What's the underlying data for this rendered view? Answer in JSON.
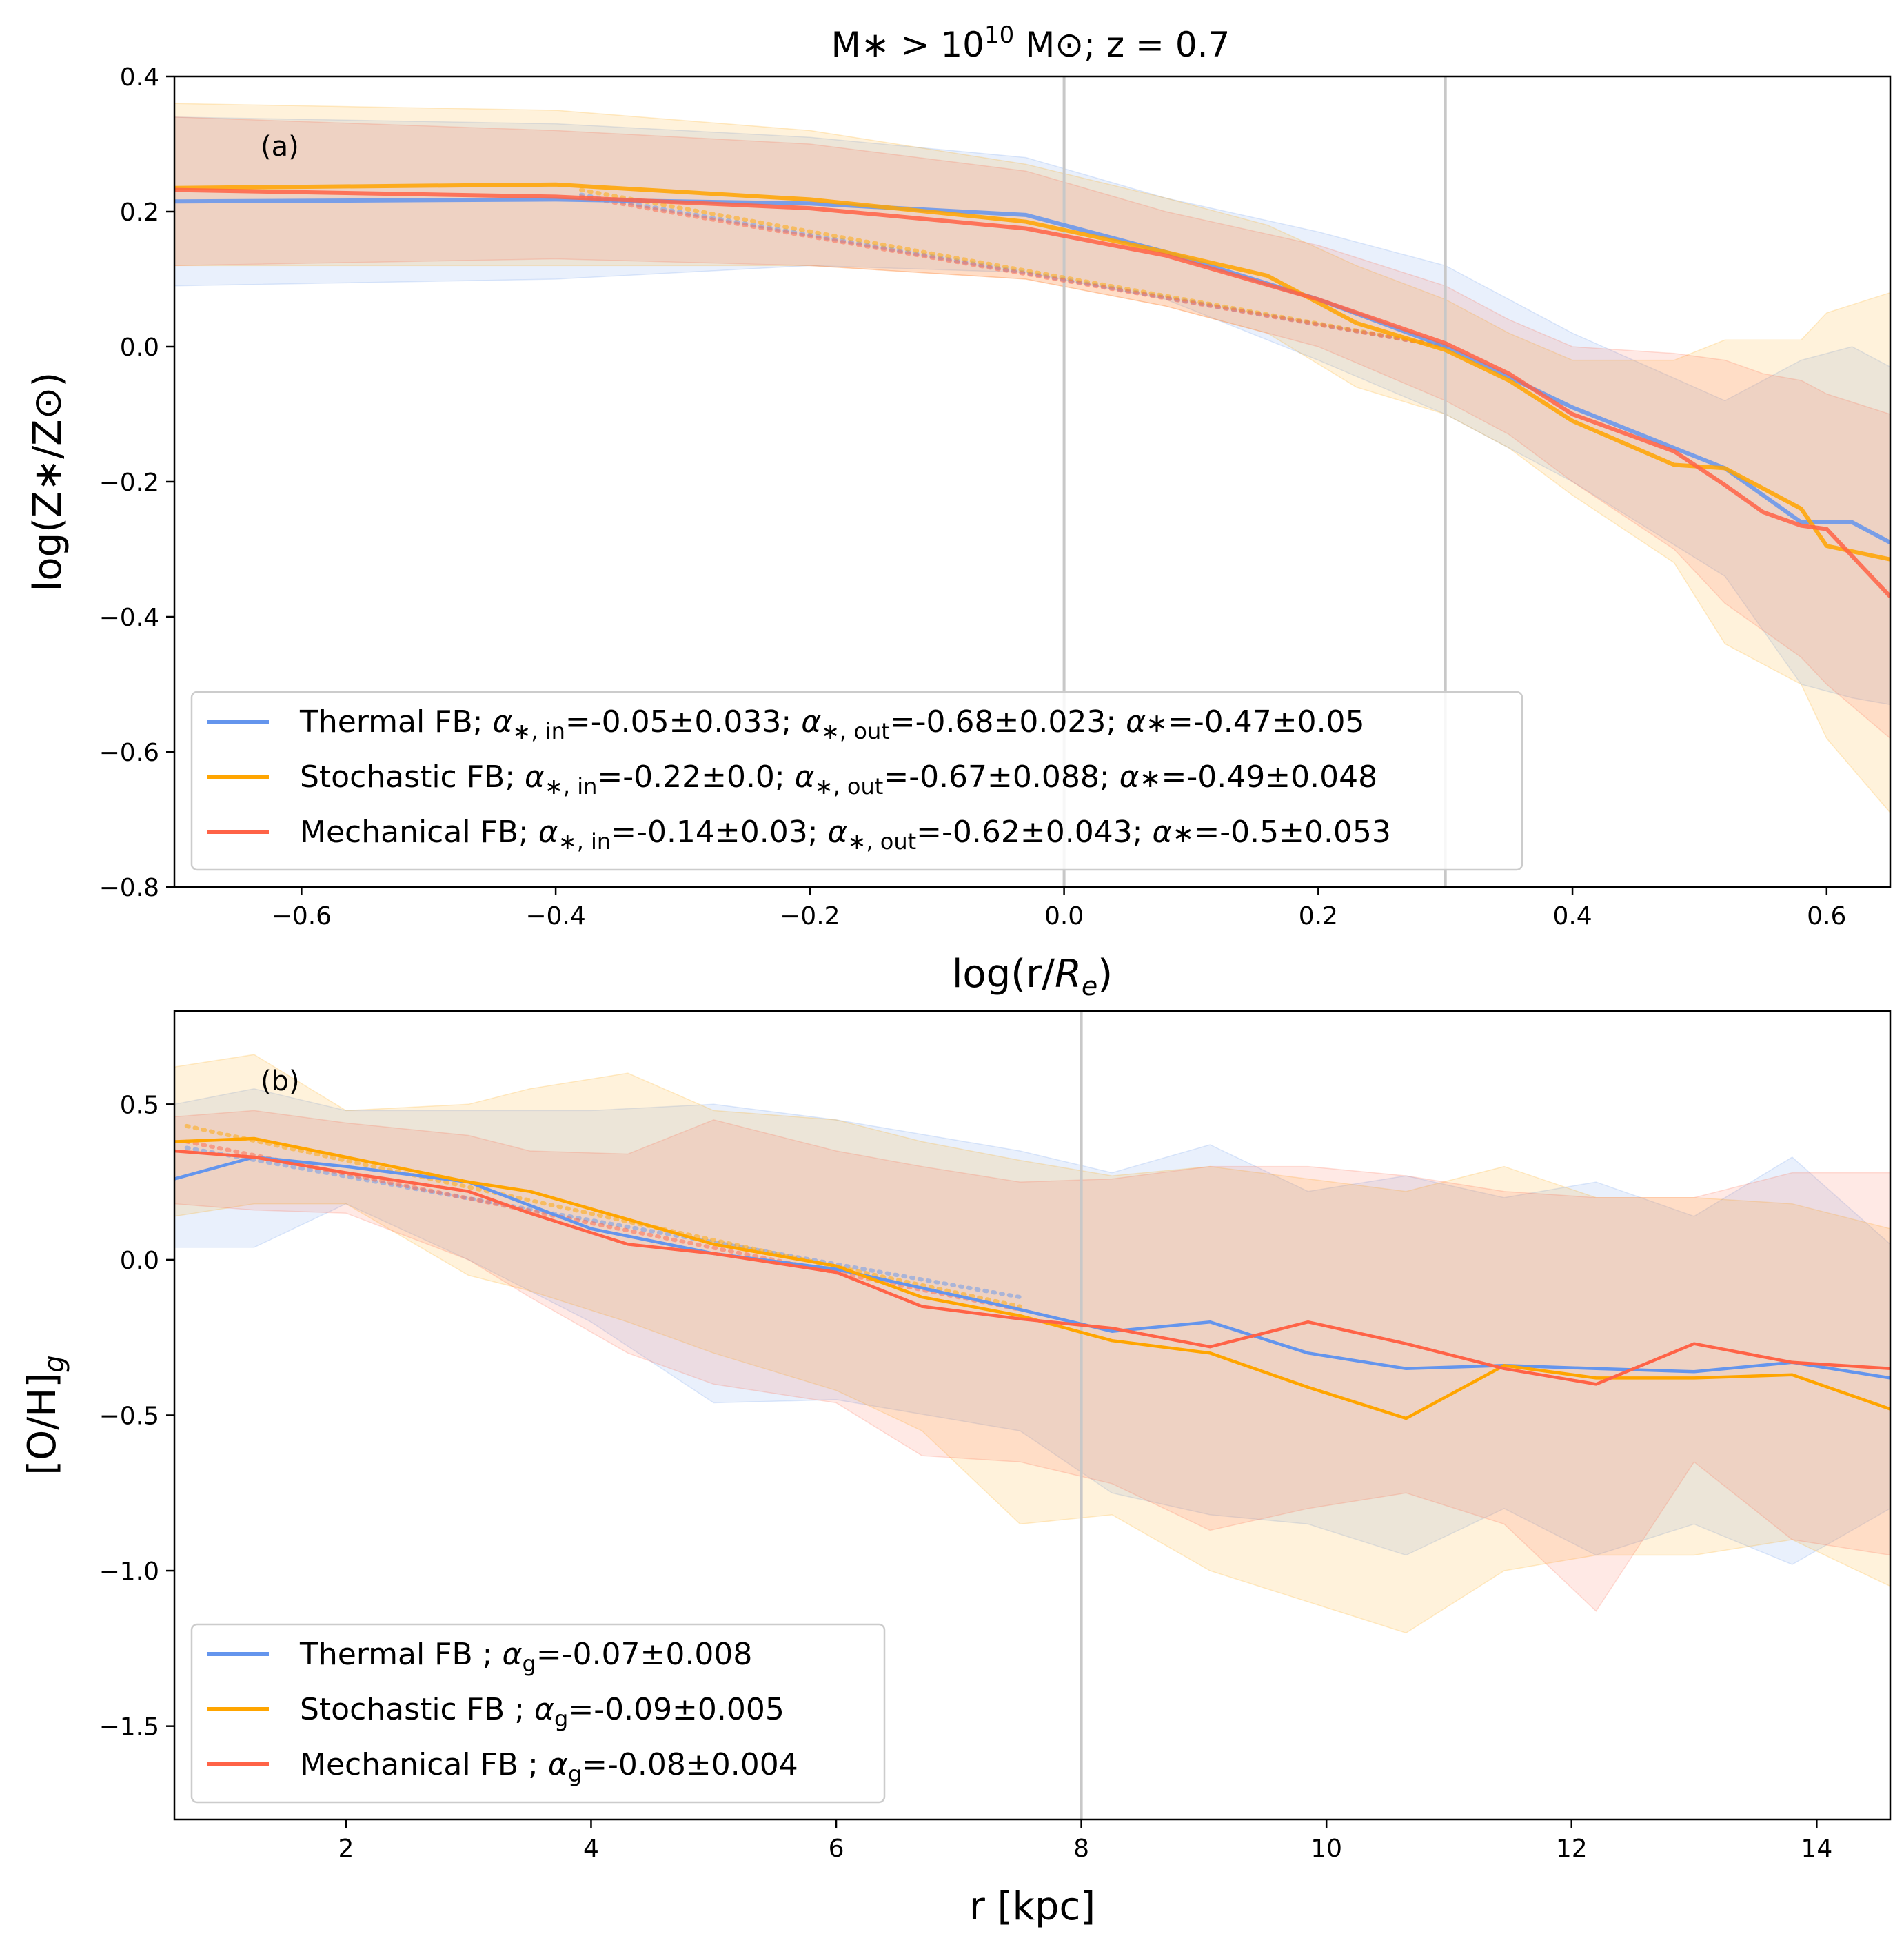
{
  "figure": {
    "title": "M∗ > 10^10 M⊙; z = 0.7",
    "title_parts": {
      "pre": "M∗ > 10",
      "sup": "10",
      "post": " M⊙; z = 0.7"
    }
  },
  "colors": {
    "thermal": "#6495ED",
    "stochastic": "#FFA500",
    "mechanical": "#FF6347"
  },
  "chart_data": [
    {
      "type": "line",
      "panel_tag": "(a)",
      "xlabel": "log(r/Rₑ)",
      "xlabel_parts": {
        "pre": "log(r/",
        "italic": "R",
        "sub": "e",
        "post": ")"
      },
      "ylabel": "log(Z∗/Z⊙)",
      "xlim": [
        -0.7,
        0.65
      ],
      "ylim": [
        -0.8,
        0.4
      ],
      "xticks": [
        -0.6,
        -0.4,
        -0.2,
        0.0,
        0.2,
        0.4,
        0.6
      ],
      "xtick_labels": [
        "−0.6",
        "−0.4",
        "−0.2",
        "0.0",
        "0.2",
        "0.4",
        "0.6"
      ],
      "yticks": [
        0.4,
        0.2,
        0.0,
        -0.2,
        -0.4,
        -0.6,
        -0.8
      ],
      "ytick_labels": [
        "0.4",
        "0.2",
        "0.0",
        "−0.2",
        "−0.4",
        "−0.6",
        "−0.8"
      ],
      "vlines": [
        0.0,
        0.3
      ],
      "legend_position": "lower-left",
      "series": [
        {
          "name": "Thermal FB",
          "key": "thermal",
          "legend_parts": {
            "name": "Thermal FB",
            "in": "-0.05±0.033",
            "out": "-0.68±0.023",
            "tot": "-0.47±0.05"
          },
          "x": [
            -0.7,
            -0.4,
            -0.2,
            -0.03,
            0.08,
            0.2,
            0.3,
            0.4,
            0.52,
            0.58,
            0.62,
            0.65
          ],
          "y": [
            0.215,
            0.218,
            0.212,
            0.195,
            0.14,
            0.07,
            0.0,
            -0.09,
            -0.18,
            -0.26,
            -0.26,
            -0.29
          ],
          "upper": [
            0.34,
            0.33,
            0.31,
            0.28,
            0.22,
            0.17,
            0.12,
            0.02,
            -0.08,
            -0.02,
            0.0,
            -0.03
          ],
          "lower": [
            0.09,
            0.1,
            0.12,
            0.11,
            0.07,
            -0.02,
            -0.1,
            -0.2,
            -0.34,
            -0.5,
            -0.52,
            -0.53
          ]
        },
        {
          "name": "Stochastic FB",
          "key": "stochastic",
          "legend_parts": {
            "name": "Stochastic FB",
            "in": "-0.22±0.0",
            "out": "-0.67±0.088",
            "tot": "-0.49±0.048"
          },
          "x": [
            -0.7,
            -0.4,
            -0.2,
            -0.03,
            0.08,
            0.16,
            0.23,
            0.3,
            0.35,
            0.4,
            0.48,
            0.52,
            0.58,
            0.6,
            0.65
          ],
          "y": [
            0.235,
            0.24,
            0.218,
            0.185,
            0.14,
            0.105,
            0.035,
            -0.005,
            -0.05,
            -0.11,
            -0.175,
            -0.18,
            -0.24,
            -0.295,
            -0.315
          ],
          "upper": [
            0.36,
            0.35,
            0.32,
            0.27,
            0.22,
            0.18,
            0.12,
            0.07,
            0.02,
            -0.02,
            -0.02,
            0.01,
            0.01,
            0.05,
            0.08
          ],
          "lower": [
            0.12,
            0.12,
            0.12,
            0.1,
            0.06,
            0.02,
            -0.06,
            -0.1,
            -0.15,
            -0.22,
            -0.32,
            -0.44,
            -0.5,
            -0.58,
            -0.69
          ]
        },
        {
          "name": "Mechanical FB",
          "key": "mechanical",
          "legend_parts": {
            "name": "Mechanical FB",
            "in": "-0.14±0.03",
            "out": "-0.62±0.043",
            "tot": "-0.5±0.053"
          },
          "x": [
            -0.7,
            -0.4,
            -0.2,
            -0.03,
            0.08,
            0.2,
            0.3,
            0.35,
            0.4,
            0.48,
            0.52,
            0.55,
            0.58,
            0.6,
            0.65
          ],
          "y": [
            0.232,
            0.222,
            0.205,
            0.175,
            0.135,
            0.07,
            0.005,
            -0.04,
            -0.1,
            -0.155,
            -0.205,
            -0.245,
            -0.265,
            -0.27,
            -0.37
          ],
          "upper": [
            0.34,
            0.32,
            0.3,
            0.26,
            0.2,
            0.15,
            0.09,
            0.04,
            0.0,
            -0.01,
            -0.02,
            -0.04,
            -0.05,
            -0.07,
            -0.1
          ],
          "lower": [
            0.12,
            0.13,
            0.12,
            0.1,
            0.06,
            0.0,
            -0.08,
            -0.13,
            -0.2,
            -0.3,
            -0.38,
            -0.42,
            -0.46,
            -0.5,
            -0.58
          ]
        }
      ],
      "fits": [
        {
          "key": "thermal",
          "x": [
            -0.38,
            0.3
          ],
          "y": [
            0.225,
            0.0
          ]
        },
        {
          "key": "stochastic",
          "x": [
            -0.38,
            0.3
          ],
          "y": [
            0.232,
            0.0
          ]
        },
        {
          "key": "mechanical",
          "x": [
            -0.38,
            0.3
          ],
          "y": [
            0.222,
            0.0
          ]
        }
      ]
    },
    {
      "type": "line",
      "panel_tag": "(b)",
      "xlabel": "r [kpc]",
      "ylabel": "[O/H]g",
      "ylabel_parts": {
        "pre": "[O/H]",
        "sub": "g"
      },
      "xlim": [
        0.6,
        14.6
      ],
      "ylim": [
        -1.8,
        0.8
      ],
      "xticks": [
        2,
        4,
        6,
        8,
        10,
        12,
        14
      ],
      "xtick_labels": [
        "2",
        "4",
        "6",
        "8",
        "10",
        "12",
        "14"
      ],
      "yticks": [
        0.5,
        0.0,
        -0.5,
        -1.0,
        -1.5
      ],
      "ytick_labels": [
        "0.5",
        "0.0",
        "−0.5",
        "−1.0",
        "−1.5"
      ],
      "vlines": [
        8.0
      ],
      "legend_position": "lower-left",
      "series": [
        {
          "name": "Thermal FB",
          "key": "thermal",
          "legend_parts": {
            "name": "Thermal FB ",
            "g": "-0.07±0.008"
          },
          "x": [
            0.6,
            1.25,
            2.0,
            3.0,
            4.0,
            5.0,
            6.0,
            7.5,
            8.25,
            9.05,
            9.85,
            10.65,
            11.45,
            12.2,
            13.0,
            13.8,
            14.6
          ],
          "y": [
            0.26,
            0.33,
            0.3,
            0.25,
            0.1,
            0.02,
            -0.03,
            -0.16,
            -0.23,
            -0.2,
            -0.3,
            -0.35,
            -0.34,
            -0.35,
            -0.36,
            -0.33,
            -0.38
          ],
          "upper": [
            0.5,
            0.55,
            0.48,
            0.48,
            0.48,
            0.5,
            0.45,
            0.35,
            0.28,
            0.37,
            0.22,
            0.27,
            0.2,
            0.25,
            0.14,
            0.33,
            0.05
          ],
          "lower": [
            0.04,
            0.04,
            0.18,
            0.0,
            -0.2,
            -0.46,
            -0.45,
            -0.55,
            -0.75,
            -0.82,
            -0.85,
            -0.95,
            -0.8,
            -0.95,
            -0.85,
            -0.98,
            -0.8
          ]
        },
        {
          "name": "Stochastic FB",
          "key": "stochastic",
          "legend_parts": {
            "name": "Stochastic FB ",
            "g": "-0.09±0.005"
          },
          "x": [
            0.6,
            1.25,
            2.0,
            3.0,
            3.5,
            4.3,
            5.0,
            6.0,
            6.7,
            7.5,
            8.25,
            9.05,
            9.85,
            10.65,
            11.45,
            12.2,
            13.0,
            13.8,
            14.6
          ],
          "y": [
            0.38,
            0.39,
            0.33,
            0.25,
            0.22,
            0.13,
            0.05,
            -0.02,
            -0.12,
            -0.18,
            -0.26,
            -0.3,
            -0.41,
            -0.51,
            -0.34,
            -0.38,
            -0.38,
            -0.37,
            -0.48
          ],
          "upper": [
            0.62,
            0.66,
            0.48,
            0.5,
            0.55,
            0.6,
            0.48,
            0.45,
            0.38,
            0.32,
            0.27,
            0.3,
            0.26,
            0.22,
            0.3,
            0.2,
            0.2,
            0.18,
            0.1
          ],
          "lower": [
            0.14,
            0.18,
            0.18,
            -0.05,
            -0.1,
            -0.2,
            -0.3,
            -0.42,
            -0.55,
            -0.85,
            -0.82,
            -1.0,
            -1.1,
            -1.2,
            -1.0,
            -0.95,
            -0.95,
            -0.9,
            -1.05
          ]
        },
        {
          "name": "Mechanical FB",
          "key": "mechanical",
          "legend_parts": {
            "name": "Mechanical FB ",
            "g": "-0.08±0.004"
          },
          "x": [
            0.6,
            1.25,
            2.0,
            3.0,
            3.5,
            4.3,
            5.0,
            6.0,
            6.7,
            7.5,
            8.25,
            9.05,
            9.85,
            10.65,
            11.45,
            12.2,
            13.0,
            13.8,
            14.6
          ],
          "y": [
            0.35,
            0.33,
            0.28,
            0.22,
            0.15,
            0.05,
            0.02,
            -0.04,
            -0.15,
            -0.19,
            -0.22,
            -0.28,
            -0.2,
            -0.27,
            -0.35,
            -0.4,
            -0.27,
            -0.33,
            -0.35
          ],
          "upper": [
            0.46,
            0.48,
            0.44,
            0.4,
            0.35,
            0.34,
            0.45,
            0.35,
            0.3,
            0.25,
            0.26,
            0.3,
            0.3,
            0.27,
            0.22,
            0.2,
            0.2,
            0.28,
            0.28
          ],
          "lower": [
            0.18,
            0.16,
            0.15,
            0.0,
            -0.12,
            -0.3,
            -0.4,
            -0.46,
            -0.63,
            -0.65,
            -0.72,
            -0.87,
            -0.8,
            -0.75,
            -0.85,
            -1.13,
            -0.65,
            -0.9,
            -0.95
          ]
        }
      ],
      "fits": [
        {
          "key": "thermal",
          "x": [
            0.7,
            7.5
          ],
          "y": [
            0.36,
            -0.12
          ]
        },
        {
          "key": "stochastic",
          "x": [
            0.7,
            7.5
          ],
          "y": [
            0.43,
            -0.15
          ]
        },
        {
          "key": "mechanical",
          "x": [
            0.7,
            7.5
          ],
          "y": [
            0.38,
            -0.16
          ]
        }
      ]
    }
  ]
}
